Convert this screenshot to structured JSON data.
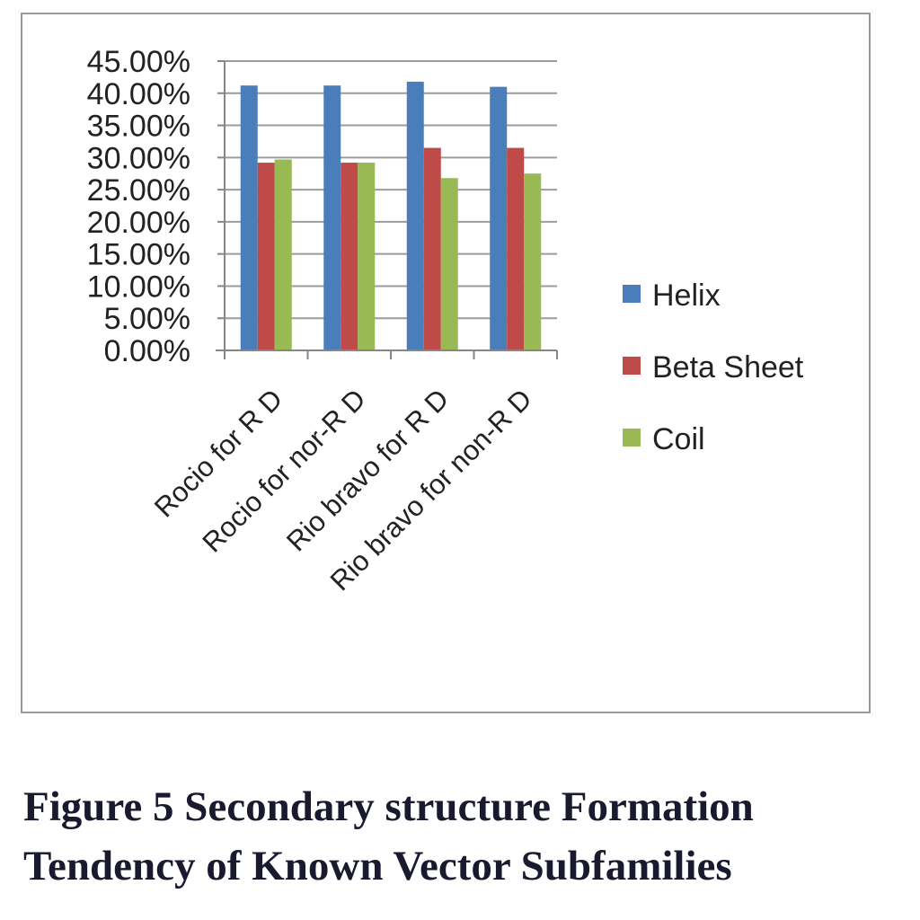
{
  "caption": {
    "line1": "Figure 5 Secondary structure Formation",
    "line2": "Tendency of Known Vector Subfamilies"
  },
  "chart_data": {
    "type": "bar",
    "categories": [
      "Rocio for R D",
      "Rocio for nor-R D",
      "Rio bravo for R D",
      "Rio bravo for non-R D"
    ],
    "series": [
      {
        "name": "Helix",
        "color": "#4a7ebb",
        "values": [
          41.2,
          41.2,
          41.8,
          41.0
        ]
      },
      {
        "name": "Beta Sheet",
        "color": "#be4b48",
        "values": [
          29.2,
          29.2,
          31.5,
          31.5
        ]
      },
      {
        "name": "Coil",
        "color": "#98b954",
        "values": [
          29.7,
          29.2,
          26.8,
          27.5
        ]
      }
    ],
    "yticks": [
      "0.00%",
      "5.00%",
      "10.00%",
      "15.00%",
      "20.00%",
      "25.00%",
      "30.00%",
      "35.00%",
      "40.00%",
      "45.00%"
    ],
    "ylim": [
      0,
      45
    ],
    "grid": true,
    "legend_position": "right"
  }
}
